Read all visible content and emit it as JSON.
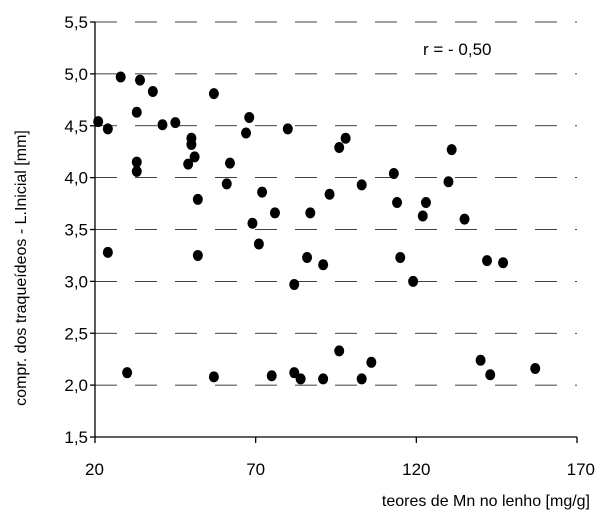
{
  "chart_data": {
    "type": "scatter",
    "title": "",
    "xlabel": "teores de Mn no lenho [mg/g]",
    "ylabel": "compr. dos traqueídeos - L.Inicial [mm]",
    "annotation": "r = - 0,50",
    "xlim": [
      20,
      170
    ],
    "ylim": [
      1.5,
      5.5
    ],
    "x_ticks": [
      20,
      70,
      120,
      170
    ],
    "x_tick_labels": [
      "20",
      "70",
      "120",
      "170"
    ],
    "y_ticks": [
      1.5,
      2.0,
      2.5,
      3.0,
      3.5,
      4.0,
      4.5,
      5.0,
      5.5
    ],
    "y_tick_labels": [
      "1,5",
      "2,0",
      "2,5",
      "3,0",
      "3,5",
      "4,0",
      "4,5",
      "5,0",
      "5,5"
    ],
    "grid": "horizontal dashed",
    "marker_color": "#000000",
    "points": [
      {
        "x": 21,
        "y": 4.54
      },
      {
        "x": 24,
        "y": 4.47
      },
      {
        "x": 24,
        "y": 3.28
      },
      {
        "x": 28,
        "y": 4.97
      },
      {
        "x": 30,
        "y": 2.12
      },
      {
        "x": 33,
        "y": 4.63
      },
      {
        "x": 33,
        "y": 4.15
      },
      {
        "x": 33,
        "y": 4.06
      },
      {
        "x": 34,
        "y": 4.94
      },
      {
        "x": 38,
        "y": 4.83
      },
      {
        "x": 41,
        "y": 4.51
      },
      {
        "x": 45,
        "y": 4.53
      },
      {
        "x": 49,
        "y": 4.13
      },
      {
        "x": 50,
        "y": 4.38
      },
      {
        "x": 50,
        "y": 4.32
      },
      {
        "x": 51,
        "y": 4.2
      },
      {
        "x": 52,
        "y": 3.79
      },
      {
        "x": 52,
        "y": 3.25
      },
      {
        "x": 57,
        "y": 4.81
      },
      {
        "x": 57,
        "y": 2.08
      },
      {
        "x": 61,
        "y": 3.94
      },
      {
        "x": 62,
        "y": 4.14
      },
      {
        "x": 67,
        "y": 4.43
      },
      {
        "x": 68,
        "y": 4.58
      },
      {
        "x": 69,
        "y": 3.56
      },
      {
        "x": 71,
        "y": 3.36
      },
      {
        "x": 72,
        "y": 3.86
      },
      {
        "x": 75,
        "y": 2.09
      },
      {
        "x": 76,
        "y": 3.66
      },
      {
        "x": 80,
        "y": 4.47
      },
      {
        "x": 82,
        "y": 2.97
      },
      {
        "x": 82,
        "y": 2.12
      },
      {
        "x": 84,
        "y": 2.06
      },
      {
        "x": 86,
        "y": 3.23
      },
      {
        "x": 87,
        "y": 3.66
      },
      {
        "x": 91,
        "y": 3.16
      },
      {
        "x": 91,
        "y": 2.06
      },
      {
        "x": 93,
        "y": 3.84
      },
      {
        "x": 96,
        "y": 4.29
      },
      {
        "x": 96,
        "y": 2.33
      },
      {
        "x": 98,
        "y": 4.38
      },
      {
        "x": 103,
        "y": 3.93
      },
      {
        "x": 103,
        "y": 2.06
      },
      {
        "x": 106,
        "y": 2.22
      },
      {
        "x": 113,
        "y": 4.04
      },
      {
        "x": 114,
        "y": 3.76
      },
      {
        "x": 115,
        "y": 3.23
      },
      {
        "x": 119,
        "y": 3.0
      },
      {
        "x": 122,
        "y": 3.63
      },
      {
        "x": 123,
        "y": 3.76
      },
      {
        "x": 130,
        "y": 3.96
      },
      {
        "x": 131,
        "y": 4.27
      },
      {
        "x": 135,
        "y": 3.6
      },
      {
        "x": 140,
        "y": 2.24
      },
      {
        "x": 142,
        "y": 3.2
      },
      {
        "x": 143,
        "y": 2.1
      },
      {
        "x": 147,
        "y": 3.18
      },
      {
        "x": 157,
        "y": 2.16
      }
    ]
  }
}
